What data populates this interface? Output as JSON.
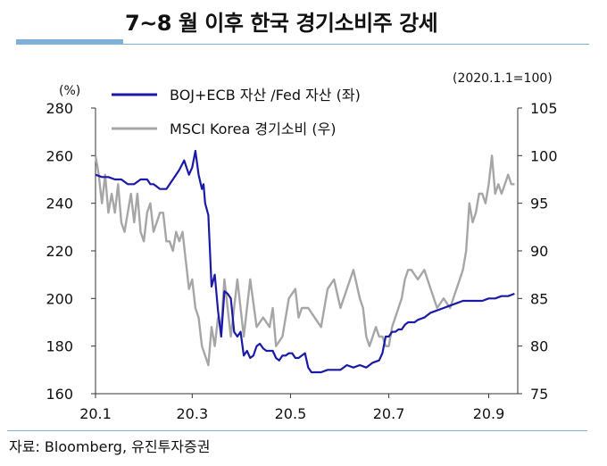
{
  "header": {
    "title": "7~8 월 이후 한국 경기소비주 강세"
  },
  "footer": {
    "source": "자료: Bloomberg, 유진투자증권"
  },
  "chart_data": {
    "type": "line",
    "left_axis_unit": "(%)",
    "right_axis_note": "(2020.1.1=100)",
    "ylim_left": [
      160,
      280
    ],
    "ylim_right": [
      75,
      105
    ],
    "left_ticks": [
      160,
      180,
      200,
      220,
      240,
      260,
      280
    ],
    "right_ticks": [
      75,
      80,
      85,
      90,
      95,
      100,
      105
    ],
    "x_ticks": [
      {
        "t": 0,
        "label": "20.1"
      },
      {
        "t": 60,
        "label": "20.3"
      },
      {
        "t": 121,
        "label": "20.5"
      },
      {
        "t": 182,
        "label": "20.7"
      },
      {
        "t": 244,
        "label": "20.9"
      }
    ],
    "x_range": [
      0,
      262
    ],
    "grid": false,
    "legend_position": "top-left",
    "series": [
      {
        "name": "BOJ+ECB 자산 /Fed 자산 (좌)",
        "axis": "left",
        "color": "#1a1aa6",
        "x": [
          0,
          4,
          8,
          12,
          16,
          20,
          24,
          28,
          32,
          34,
          36,
          40,
          44,
          48,
          52,
          55,
          58,
          60,
          62,
          64,
          66,
          67,
          68,
          70,
          72,
          74,
          76,
          78,
          80,
          82,
          84,
          86,
          88,
          90,
          92,
          94,
          96,
          98,
          100,
          102,
          104,
          106,
          108,
          110,
          112,
          114,
          116,
          118,
          120,
          122,
          124,
          126,
          128,
          130,
          132,
          134,
          136,
          140,
          144,
          148,
          152,
          156,
          160,
          164,
          168,
          172,
          176,
          178,
          180,
          182,
          184,
          186,
          188,
          190,
          192,
          194,
          196,
          198,
          200,
          204,
          208,
          212,
          216,
          220,
          224,
          228,
          232,
          236,
          240,
          244,
          248,
          252,
          256,
          260
        ],
        "y": [
          252,
          251,
          251,
          250,
          250,
          248,
          248,
          250,
          250,
          248,
          248,
          246,
          246,
          250,
          254,
          258,
          252,
          255,
          262,
          252,
          246,
          248,
          240,
          235,
          205,
          210,
          195,
          184,
          203,
          202,
          200,
          186,
          184,
          186,
          176,
          178,
          175,
          176,
          180,
          181,
          179,
          178,
          178,
          178,
          175,
          174,
          176,
          176,
          177,
          177,
          175,
          175,
          176,
          177,
          171,
          169,
          169,
          169,
          170,
          170,
          170,
          172,
          171,
          172,
          171,
          173,
          174,
          177,
          184,
          184,
          186,
          186,
          187,
          187,
          189,
          190,
          190,
          190,
          191,
          192,
          194,
          195,
          196,
          197,
          198,
          199,
          199,
          199,
          199,
          200,
          200,
          201,
          201,
          202
        ]
      },
      {
        "name": "MSCI Korea 경기소비 (우)",
        "axis": "right",
        "color": "#a6a6a6",
        "x": [
          0,
          2,
          4,
          6,
          8,
          10,
          12,
          14,
          16,
          18,
          20,
          22,
          24,
          26,
          28,
          30,
          32,
          34,
          36,
          38,
          40,
          42,
          44,
          46,
          48,
          50,
          52,
          54,
          56,
          58,
          60,
          62,
          64,
          66,
          68,
          70,
          72,
          74,
          76,
          78,
          80,
          84,
          88,
          92,
          96,
          100,
          104,
          108,
          110,
          112,
          116,
          120,
          124,
          126,
          128,
          132,
          136,
          140,
          144,
          148,
          152,
          156,
          160,
          164,
          166,
          168,
          170,
          172,
          174,
          176,
          178,
          180,
          182,
          184,
          186,
          188,
          190,
          192,
          194,
          196,
          200,
          204,
          208,
          212,
          216,
          220,
          224,
          228,
          230,
          232,
          234,
          236,
          238,
          240,
          242,
          244,
          246,
          248,
          250,
          252,
          254,
          256,
          258,
          260
        ],
        "y": [
          100,
          98,
          95,
          98,
          94,
          96,
          94,
          97,
          93,
          92,
          94,
          96,
          93,
          96,
          92,
          91,
          94,
          95,
          92,
          93,
          94,
          94,
          91,
          91,
          90,
          92,
          91,
          92,
          89,
          86,
          87,
          84,
          83,
          80,
          79,
          78,
          82,
          80,
          83,
          82,
          87,
          81,
          87,
          81,
          87,
          82,
          83,
          82,
          84,
          80,
          81,
          85,
          86,
          83,
          84,
          84,
          83,
          82,
          86,
          87,
          84,
          86,
          88,
          85,
          84,
          81,
          80,
          81,
          82,
          81,
          81,
          80,
          80,
          82,
          83,
          84,
          85,
          87,
          88,
          88,
          87,
          88,
          86,
          84,
          85,
          84,
          86,
          88,
          90,
          95,
          93,
          94,
          96,
          96,
          95,
          97,
          100,
          96,
          97,
          96,
          97,
          98,
          97,
          97
        ]
      }
    ]
  }
}
